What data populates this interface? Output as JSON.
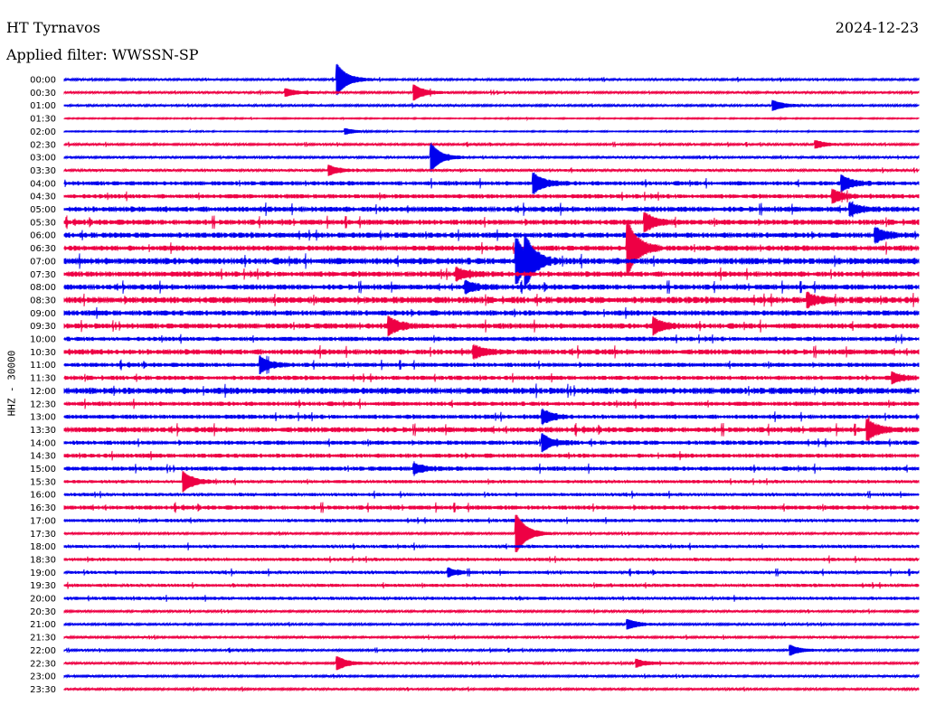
{
  "header": {
    "station": "HT Tyrnavos",
    "date": "2024-12-23",
    "filter": "Applied filter: WWSSN-SP",
    "channel": "HHZ - 30000"
  },
  "colors": {
    "even": "#0000ee",
    "odd": "#ee0044"
  },
  "chart_data": {
    "type": "line",
    "title": "HT Tyrnavos",
    "ylabel": "HHZ - 30000",
    "rows": [
      "00:00",
      "00:30",
      "01:00",
      "01:30",
      "02:00",
      "02:30",
      "03:00",
      "03:30",
      "04:00",
      "04:30",
      "05:00",
      "05:30",
      "06:00",
      "06:30",
      "07:00",
      "07:30",
      "08:00",
      "08:30",
      "09:00",
      "09:30",
      "10:00",
      "10:30",
      "11:00",
      "11:30",
      "12:00",
      "12:30",
      "13:00",
      "13:30",
      "14:00",
      "14:30",
      "15:00",
      "15:30",
      "16:00",
      "16:30",
      "17:00",
      "17:30",
      "18:00",
      "18:30",
      "19:00",
      "19:30",
      "20:00",
      "20:30",
      "21:00",
      "21:30",
      "22:00",
      "22:30",
      "23:00",
      "23:30"
    ],
    "noise": [
      1,
      1,
      1,
      0.6,
      0.6,
      1,
      1,
      1.2,
      2,
      2,
      2.5,
      2.5,
      2.5,
      2.5,
      3,
      2.5,
      2.5,
      3,
      2.5,
      2.5,
      2,
      2.5,
      2,
      2,
      3,
      2,
      2,
      2.5,
      2,
      2,
      2,
      1.5,
      1.5,
      2,
      1.5,
      1,
      1.5,
      1.5,
      1.5,
      1.5,
      1.5,
      1,
      1,
      1,
      1,
      1,
      1,
      1
    ],
    "events": [
      {
        "row": 0,
        "x": 0.32,
        "amp": 16
      },
      {
        "row": 1,
        "x": 0.26,
        "amp": 4
      },
      {
        "row": 1,
        "x": 0.41,
        "amp": 8
      },
      {
        "row": 2,
        "x": 0.83,
        "amp": 5
      },
      {
        "row": 4,
        "x": 0.33,
        "amp": 3
      },
      {
        "row": 5,
        "x": 0.88,
        "amp": 4
      },
      {
        "row": 6,
        "x": 0.43,
        "amp": 14
      },
      {
        "row": 7,
        "x": 0.31,
        "amp": 5
      },
      {
        "row": 8,
        "x": 0.55,
        "amp": 10
      },
      {
        "row": 8,
        "x": 0.91,
        "amp": 8
      },
      {
        "row": 9,
        "x": 0.9,
        "amp": 6
      },
      {
        "row": 10,
        "x": 0.92,
        "amp": 6
      },
      {
        "row": 11,
        "x": 0.68,
        "amp": 9
      },
      {
        "row": 12,
        "x": 0.95,
        "amp": 7
      },
      {
        "row": 13,
        "x": 0.66,
        "amp": 28
      },
      {
        "row": 14,
        "x": 0.53,
        "amp": 24
      },
      {
        "row": 14,
        "x": 0.54,
        "amp": 18
      },
      {
        "row": 15,
        "x": 0.46,
        "amp": 6
      },
      {
        "row": 16,
        "x": 0.47,
        "amp": 6
      },
      {
        "row": 17,
        "x": 0.87,
        "amp": 6
      },
      {
        "row": 19,
        "x": 0.38,
        "amp": 9
      },
      {
        "row": 19,
        "x": 0.69,
        "amp": 8
      },
      {
        "row": 21,
        "x": 0.48,
        "amp": 6
      },
      {
        "row": 22,
        "x": 0.23,
        "amp": 8
      },
      {
        "row": 23,
        "x": 0.97,
        "amp": 5
      },
      {
        "row": 26,
        "x": 0.56,
        "amp": 7
      },
      {
        "row": 27,
        "x": 0.94,
        "amp": 10
      },
      {
        "row": 28,
        "x": 0.56,
        "amp": 8
      },
      {
        "row": 30,
        "x": 0.41,
        "amp": 5
      },
      {
        "row": 31,
        "x": 0.14,
        "amp": 10
      },
      {
        "row": 35,
        "x": 0.53,
        "amp": 20
      },
      {
        "row": 38,
        "x": 0.45,
        "amp": 4
      },
      {
        "row": 42,
        "x": 0.66,
        "amp": 5
      },
      {
        "row": 44,
        "x": 0.85,
        "amp": 5
      },
      {
        "row": 45,
        "x": 0.32,
        "amp": 7
      },
      {
        "row": 45,
        "x": 0.67,
        "amp": 4
      }
    ],
    "xlim": [
      0,
      1
    ]
  }
}
